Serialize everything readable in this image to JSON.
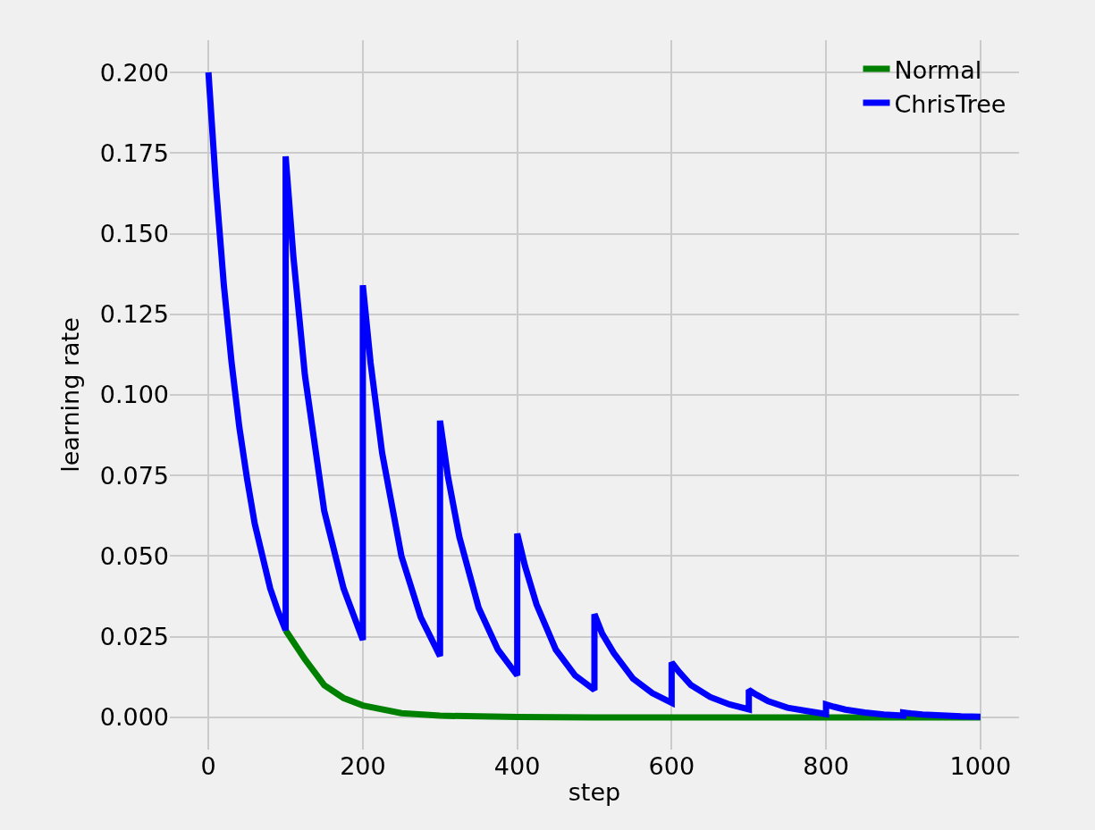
{
  "chart_data": {
    "type": "line",
    "xlabel": "step",
    "ylabel": "learning rate",
    "xlim": [
      -50,
      1050
    ],
    "xticks": [
      0,
      200,
      400,
      600,
      800,
      1000
    ],
    "ylim": [
      -0.01,
      0.21
    ],
    "yticks": [
      {
        "value": 0,
        "label": "0.000"
      },
      {
        "value": 0.025,
        "label": "0.025"
      },
      {
        "value": 0.05,
        "label": "0.050"
      },
      {
        "value": 0.075,
        "label": "0.075"
      },
      {
        "value": 0.1,
        "label": "0.100"
      },
      {
        "value": 0.125,
        "label": "0.125"
      },
      {
        "value": 0.15,
        "label": "0.150"
      },
      {
        "value": 0.175,
        "label": "0.175"
      },
      {
        "value": 0.2,
        "label": "0.200"
      }
    ],
    "grid": true,
    "legend": "top right",
    "marker": "none",
    "line_style": "solid",
    "series": [
      {
        "name": "Normal",
        "color": "#008000",
        "x": [
          100,
          125,
          150,
          175,
          200,
          250,
          300,
          400,
          500,
          1000
        ],
        "values": [
          0.027,
          0.018,
          0.01,
          0.006,
          0.0037,
          0.0013,
          0.0005,
          0.0001,
          0,
          0
        ]
      },
      {
        "name": "ChrisTree",
        "color": "#0000ff",
        "x": [
          0,
          10,
          20,
          30,
          40,
          50,
          60,
          70,
          80,
          90,
          100,
          100,
          110,
          125,
          150,
          175,
          200,
          200,
          210,
          225,
          250,
          275,
          300,
          300,
          310,
          325,
          350,
          375,
          400,
          400,
          410,
          425,
          450,
          475,
          500,
          500,
          510,
          525,
          550,
          575,
          600,
          600,
          610,
          625,
          650,
          675,
          700,
          700,
          710,
          725,
          750,
          775,
          800,
          800,
          810,
          825,
          850,
          875,
          900,
          900,
          910,
          925,
          950,
          975,
          1000
        ],
        "values": [
          0.2,
          0.164,
          0.134,
          0.11,
          0.09,
          0.074,
          0.06,
          0.05,
          0.04,
          0.033,
          0.027,
          0.174,
          0.143,
          0.106,
          0.064,
          0.04,
          0.024,
          0.134,
          0.11,
          0.082,
          0.05,
          0.031,
          0.019,
          0.092,
          0.075,
          0.056,
          0.034,
          0.021,
          0.013,
          0.057,
          0.047,
          0.035,
          0.021,
          0.013,
          0.0085,
          0.032,
          0.026,
          0.02,
          0.012,
          0.0075,
          0.0045,
          0.017,
          0.014,
          0.01,
          0.0063,
          0.004,
          0.0025,
          0.0085,
          0.007,
          0.005,
          0.003,
          0.002,
          0.001,
          0.004,
          0.0033,
          0.0024,
          0.0015,
          0.0009,
          0.0005,
          0.0015,
          0.0012,
          0.0009,
          0.0006,
          0.0003,
          0.0002
        ]
      }
    ]
  }
}
